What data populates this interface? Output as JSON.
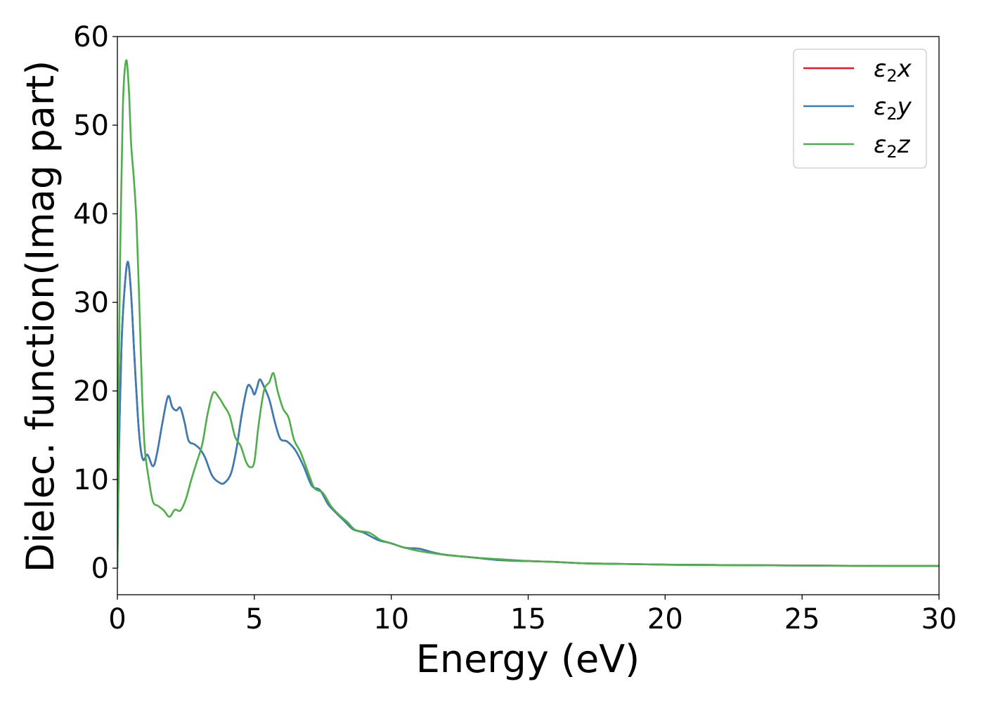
{
  "chart_data": {
    "type": "line",
    "title": "",
    "xlabel": "Energy (eV)",
    "ylabel": "Dielec. function(Imag part)",
    "xlim": [
      0,
      30
    ],
    "ylim": [
      -3,
      60
    ],
    "xticks": [
      0,
      5,
      10,
      15,
      20,
      25,
      30
    ],
    "yticks": [
      0,
      10,
      20,
      30,
      40,
      50,
      60
    ],
    "grid": false,
    "legend_position": "top-right",
    "series": [
      {
        "name": "ε2x",
        "color": "#e41a1c",
        "points": [
          [
            0,
            0
          ],
          [
            0.05,
            12
          ],
          [
            0.15,
            25
          ],
          [
            0.25,
            31
          ],
          [
            0.38,
            34.6
          ],
          [
            0.5,
            31
          ],
          [
            0.62,
            24
          ],
          [
            0.75,
            17
          ],
          [
            0.85,
            13.5
          ],
          [
            0.95,
            12.2
          ],
          [
            1.1,
            12.8
          ],
          [
            1.3,
            11.5
          ],
          [
            1.45,
            13
          ],
          [
            1.65,
            16.5
          ],
          [
            1.85,
            19.4
          ],
          [
            2.0,
            18.2
          ],
          [
            2.15,
            17.8
          ],
          [
            2.3,
            18.1
          ],
          [
            2.45,
            16.5
          ],
          [
            2.6,
            14.4
          ],
          [
            2.8,
            14.0
          ],
          [
            3.0,
            13.5
          ],
          [
            3.2,
            12.5
          ],
          [
            3.45,
            10.5
          ],
          [
            3.7,
            9.7
          ],
          [
            3.9,
            9.6
          ],
          [
            4.15,
            10.7
          ],
          [
            4.35,
            13.5
          ],
          [
            4.55,
            17.5
          ],
          [
            4.75,
            20.5
          ],
          [
            4.9,
            20.3
          ],
          [
            5.0,
            19.6
          ],
          [
            5.1,
            20.4
          ],
          [
            5.2,
            21.3
          ],
          [
            5.35,
            20.5
          ],
          [
            5.55,
            19
          ],
          [
            5.75,
            16.5
          ],
          [
            5.95,
            14.6
          ],
          [
            6.2,
            14.3
          ],
          [
            6.5,
            13.3
          ],
          [
            6.8,
            11.5
          ],
          [
            7.1,
            9.3
          ],
          [
            7.4,
            8.8
          ],
          [
            7.7,
            7.2
          ],
          [
            8.0,
            6.2
          ],
          [
            8.3,
            5.3
          ],
          [
            8.6,
            4.4
          ],
          [
            9.0,
            4.0
          ],
          [
            9.5,
            3.2
          ],
          [
            10.0,
            2.8
          ],
          [
            10.5,
            2.3
          ],
          [
            11.0,
            2.2
          ],
          [
            11.5,
            1.8
          ],
          [
            12.0,
            1.5
          ],
          [
            13.0,
            1.2
          ],
          [
            14.0,
            0.9
          ],
          [
            15.0,
            0.8
          ],
          [
            16.0,
            0.7
          ],
          [
            17.0,
            0.55
          ],
          [
            18.0,
            0.5
          ],
          [
            20.0,
            0.4
          ],
          [
            22.0,
            0.35
          ],
          [
            25.0,
            0.3
          ],
          [
            28.0,
            0.25
          ],
          [
            30.0,
            0.25
          ]
        ]
      },
      {
        "name": "ε2y",
        "color": "#377eb8",
        "points": [
          [
            0,
            0
          ],
          [
            0.05,
            12
          ],
          [
            0.15,
            25
          ],
          [
            0.25,
            31
          ],
          [
            0.38,
            34.6
          ],
          [
            0.5,
            31
          ],
          [
            0.62,
            24
          ],
          [
            0.75,
            17
          ],
          [
            0.85,
            13.5
          ],
          [
            0.95,
            12.2
          ],
          [
            1.1,
            12.8
          ],
          [
            1.3,
            11.5
          ],
          [
            1.45,
            13
          ],
          [
            1.65,
            16.5
          ],
          [
            1.85,
            19.4
          ],
          [
            2.0,
            18.2
          ],
          [
            2.15,
            17.8
          ],
          [
            2.3,
            18.1
          ],
          [
            2.45,
            16.5
          ],
          [
            2.6,
            14.4
          ],
          [
            2.8,
            14.0
          ],
          [
            3.0,
            13.5
          ],
          [
            3.2,
            12.5
          ],
          [
            3.45,
            10.5
          ],
          [
            3.7,
            9.7
          ],
          [
            3.9,
            9.6
          ],
          [
            4.15,
            10.7
          ],
          [
            4.35,
            13.5
          ],
          [
            4.55,
            17.5
          ],
          [
            4.75,
            20.5
          ],
          [
            4.9,
            20.3
          ],
          [
            5.0,
            19.6
          ],
          [
            5.1,
            20.4
          ],
          [
            5.2,
            21.3
          ],
          [
            5.35,
            20.5
          ],
          [
            5.55,
            19
          ],
          [
            5.75,
            16.5
          ],
          [
            5.95,
            14.6
          ],
          [
            6.2,
            14.3
          ],
          [
            6.5,
            13.3
          ],
          [
            6.8,
            11.5
          ],
          [
            7.1,
            9.3
          ],
          [
            7.4,
            8.8
          ],
          [
            7.7,
            7.2
          ],
          [
            8.0,
            6.2
          ],
          [
            8.3,
            5.3
          ],
          [
            8.6,
            4.4
          ],
          [
            9.0,
            4.0
          ],
          [
            9.5,
            3.2
          ],
          [
            10.0,
            2.8
          ],
          [
            10.5,
            2.3
          ],
          [
            11.0,
            2.2
          ],
          [
            11.5,
            1.8
          ],
          [
            12.0,
            1.5
          ],
          [
            13.0,
            1.2
          ],
          [
            14.0,
            0.9
          ],
          [
            15.0,
            0.8
          ],
          [
            16.0,
            0.7
          ],
          [
            17.0,
            0.55
          ],
          [
            18.0,
            0.5
          ],
          [
            20.0,
            0.4
          ],
          [
            22.0,
            0.35
          ],
          [
            25.0,
            0.3
          ],
          [
            28.0,
            0.25
          ],
          [
            30.0,
            0.25
          ]
        ]
      },
      {
        "name": "ε2z",
        "color": "#4daf4a",
        "points": [
          [
            0,
            0
          ],
          [
            0.03,
            15
          ],
          [
            0.1,
            35
          ],
          [
            0.2,
            52
          ],
          [
            0.32,
            57.3
          ],
          [
            0.42,
            54
          ],
          [
            0.5,
            48
          ],
          [
            0.6,
            44
          ],
          [
            0.7,
            39
          ],
          [
            0.8,
            30
          ],
          [
            0.9,
            20
          ],
          [
            1.0,
            13.5
          ],
          [
            1.15,
            10
          ],
          [
            1.3,
            7.5
          ],
          [
            1.5,
            7.0
          ],
          [
            1.7,
            6.5
          ],
          [
            1.9,
            5.8
          ],
          [
            2.1,
            6.6
          ],
          [
            2.3,
            6.5
          ],
          [
            2.5,
            7.8
          ],
          [
            2.7,
            10.0
          ],
          [
            2.9,
            12.0
          ],
          [
            3.1,
            14.0
          ],
          [
            3.3,
            17.5
          ],
          [
            3.5,
            19.8
          ],
          [
            3.7,
            19.3
          ],
          [
            3.9,
            18.3
          ],
          [
            4.1,
            17.2
          ],
          [
            4.3,
            14.8
          ],
          [
            4.5,
            13.8
          ],
          [
            4.7,
            12.0
          ],
          [
            4.85,
            11.4
          ],
          [
            5.0,
            12.0
          ],
          [
            5.15,
            16
          ],
          [
            5.35,
            20
          ],
          [
            5.55,
            21
          ],
          [
            5.7,
            22.0
          ],
          [
            5.85,
            20
          ],
          [
            6.05,
            18.0
          ],
          [
            6.25,
            17.0
          ],
          [
            6.45,
            14.5
          ],
          [
            6.7,
            13.0
          ],
          [
            7.0,
            10.5
          ],
          [
            7.2,
            9.0
          ],
          [
            7.5,
            8.5
          ],
          [
            7.8,
            7.0
          ],
          [
            8.1,
            6.0
          ],
          [
            8.4,
            5.2
          ],
          [
            8.7,
            4.3
          ],
          [
            9.2,
            4.0
          ],
          [
            9.6,
            3.2
          ],
          [
            10.0,
            2.8
          ],
          [
            10.4,
            2.4
          ],
          [
            10.9,
            2.0
          ],
          [
            11.5,
            1.7
          ],
          [
            12.0,
            1.5
          ],
          [
            13.0,
            1.2
          ],
          [
            14.0,
            1.0
          ],
          [
            15.0,
            0.8
          ],
          [
            16.0,
            0.7
          ],
          [
            17.0,
            0.55
          ],
          [
            18.0,
            0.5
          ],
          [
            20.0,
            0.4
          ],
          [
            22.0,
            0.35
          ],
          [
            25.0,
            0.3
          ],
          [
            28.0,
            0.25
          ],
          [
            30.0,
            0.25
          ]
        ]
      }
    ]
  }
}
